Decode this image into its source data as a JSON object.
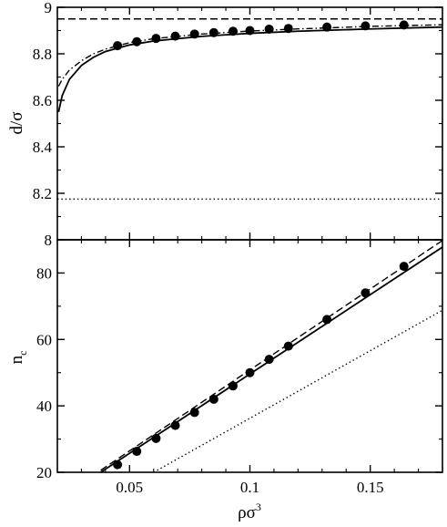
{
  "chart_data": [
    {
      "type": "line",
      "ylabel": "d/σ",
      "xlim": [
        0.02,
        0.18
      ],
      "ylim": [
        8.0,
        9.0
      ],
      "x_ticks": [
        0.05,
        0.1,
        0.15
      ],
      "y_ticks": [
        8.0,
        8.2,
        8.4,
        8.6,
        8.8,
        9.0
      ],
      "y_tick_labels": [
        "8",
        "8.2",
        "8.4",
        "8.6",
        "8.8",
        "9"
      ],
      "grid": false,
      "series": [
        {
          "style": "dashed",
          "x": [
            0.02,
            0.18
          ],
          "y": [
            8.95,
            8.95
          ]
        },
        {
          "style": "dotted",
          "x": [
            0.02,
            0.18
          ],
          "y": [
            8.175,
            8.175
          ]
        },
        {
          "style": "solid",
          "x": [
            0.0205,
            0.022,
            0.025,
            0.03,
            0.035,
            0.04,
            0.05,
            0.06,
            0.08,
            0.1,
            0.12,
            0.15,
            0.18
          ],
          "y": [
            8.55,
            8.62,
            8.69,
            8.75,
            8.785,
            8.81,
            8.838,
            8.855,
            8.875,
            8.888,
            8.897,
            8.907,
            8.915
          ]
        },
        {
          "style": "dashdot",
          "x": [
            0.0205,
            0.022,
            0.025,
            0.03,
            0.035,
            0.04,
            0.05,
            0.06,
            0.08,
            0.1,
            0.12,
            0.15,
            0.18
          ],
          "y": [
            8.66,
            8.69,
            8.73,
            8.77,
            8.8,
            8.82,
            8.848,
            8.865,
            8.885,
            8.898,
            8.907,
            8.918,
            8.925
          ]
        },
        {
          "style": "markers",
          "x": [
            0.045,
            0.053,
            0.061,
            0.069,
            0.077,
            0.085,
            0.093,
            0.1,
            0.108,
            0.116,
            0.132,
            0.148,
            0.164
          ],
          "y": [
            8.835,
            8.852,
            8.866,
            8.876,
            8.885,
            8.891,
            8.897,
            8.9,
            8.906,
            8.909,
            8.915,
            8.92,
            8.924
          ]
        }
      ]
    },
    {
      "type": "line",
      "xlabel": "ρσ",
      "xlabel_sup": "3",
      "ylabel": "n",
      "ylabel_sub": "c",
      "xlim": [
        0.02,
        0.18
      ],
      "ylim": [
        20,
        90
      ],
      "x_ticks": [
        0.05,
        0.1,
        0.15
      ],
      "x_tick_labels": [
        "0.05",
        "0.1",
        "0.15"
      ],
      "y_ticks": [
        20,
        40,
        60,
        80
      ],
      "y_tick_labels": [
        "20",
        "40",
        "60",
        "80"
      ],
      "grid": false,
      "series": [
        {
          "style": "solid",
          "x": [
            0.038,
            0.18
          ],
          "y": [
            20,
            87.8
          ]
        },
        {
          "style": "dashed",
          "x": [
            0.038,
            0.18
          ],
          "y": [
            20.6,
            89.8
          ]
        },
        {
          "style": "dotted",
          "x": [
            0.06,
            0.18
          ],
          "y": [
            20,
            68.8
          ]
        },
        {
          "style": "markers",
          "x": [
            0.045,
            0.053,
            0.061,
            0.069,
            0.077,
            0.085,
            0.093,
            0.1,
            0.108,
            0.116,
            0.132,
            0.148,
            0.164
          ],
          "y": [
            22.3,
            26.3,
            30.2,
            34.1,
            38.0,
            42.0,
            46.0,
            50.0,
            54.0,
            58.0,
            66.0,
            74.0,
            82.0
          ]
        }
      ]
    }
  ]
}
